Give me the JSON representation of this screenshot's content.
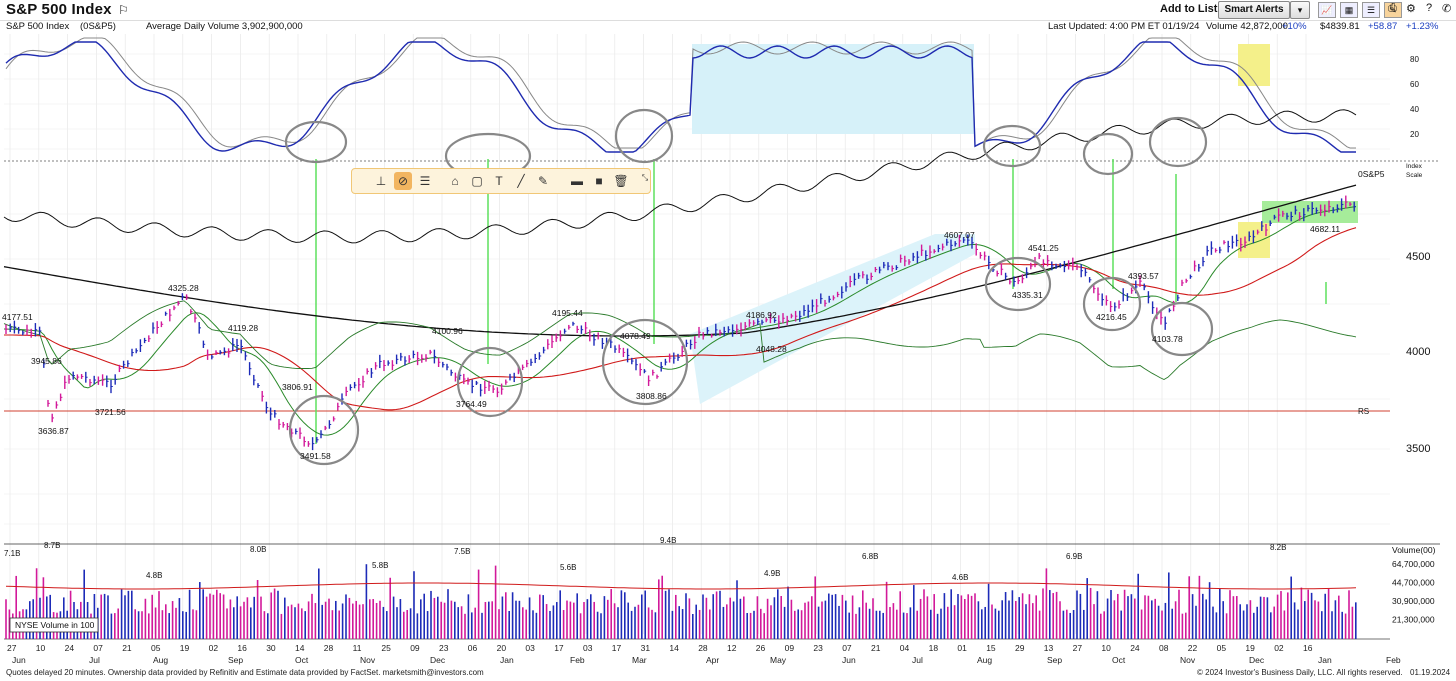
{
  "header": {
    "title": "S&P 500 Index",
    "add_to_list": "Add to List:",
    "smart_alerts": "Smart Alerts"
  },
  "info": {
    "name": "S&P 500 Index",
    "symbol": "(0S&P5)",
    "avg_volume": "Average Daily Volume 3,902,900,000",
    "last_updated": "Last Updated: 4:00 PM ET 01/19/24",
    "volume": "Volume 42,872,000",
    "volume_pct": "+10%",
    "price": "$4839.81",
    "change": "+58.87",
    "change_pct": "+1.23%"
  },
  "price_labels": [
    "4177.51",
    "3945.86",
    "3636.87",
    "3721.56",
    "4325.28",
    "4119.28",
    "3806.91",
    "3491.58",
    "4100.96",
    "3764.49",
    "4195.44",
    "4078.49",
    "3808.86",
    "4186.92",
    "4048.28",
    "4607.07",
    "4541.25",
    "4335.31",
    "4393.57",
    "4216.45",
    "4103.78",
    "4682.11"
  ],
  "symbol_tag": "0S&P5",
  "index_scale": [
    "Index",
    "Scale"
  ],
  "rs_label": "RS",
  "price_axis": [
    "4500",
    "4000",
    "3500"
  ],
  "stoch_axis": [
    "80",
    "60",
    "40",
    "20"
  ],
  "volume_axis": {
    "title": "Volume(00)",
    "ticks": [
      "64,700,000",
      "44,700,000",
      "30,900,000",
      "21,300,000"
    ]
  },
  "volume_labels": [
    "7.1B",
    "8.7B",
    "4.8B",
    "8.0B",
    "5.8B",
    "7.5B",
    "5.6B",
    "9.4B",
    "4.9B",
    "6.8B",
    "4.6B",
    "6.9B",
    "8.2B"
  ],
  "nyse_label": "NYSE Volume in 100",
  "date_ticks": [
    "27",
    "10",
    "24",
    "07",
    "21",
    "05",
    "19",
    "02",
    "16",
    "30",
    "14",
    "28",
    "11",
    "25",
    "09",
    "23",
    "06",
    "20",
    "03",
    "17",
    "03",
    "17",
    "31",
    "14",
    "28",
    "12",
    "26",
    "09",
    "23",
    "07",
    "21",
    "04",
    "18",
    "01",
    "15",
    "29",
    "13",
    "27",
    "10",
    "24",
    "08",
    "22",
    "05",
    "19",
    "02",
    "16"
  ],
  "month_labels": [
    "Jun",
    "Jul",
    "Aug",
    "Sep",
    "Oct",
    "Nov",
    "Dec",
    "Jan",
    "Feb",
    "Mar",
    "Apr",
    "May",
    "Jun",
    "Jul",
    "Aug",
    "Sep",
    "Oct",
    "Nov",
    "Dec",
    "Jan",
    "Feb"
  ],
  "footer": {
    "left": "Quotes delayed 20 minutes. Ownership data provided by Refinitiv and Estimate data provided by FactSet. marketsmith@investors.com",
    "right": "© 2024 Investor's Business Daily, LLC. All rights reserved.",
    "date": "01.19.2024"
  },
  "colors": {
    "stoch_k": "#1f2bb0",
    "stoch_d": "#888888",
    "ema21": "#2a8a2a",
    "ma50": "#d01a1a",
    "ma200": "#111111",
    "rs": "#2a7a2a",
    "up": "#1d2bb8",
    "down": "#d2199a"
  }
}
